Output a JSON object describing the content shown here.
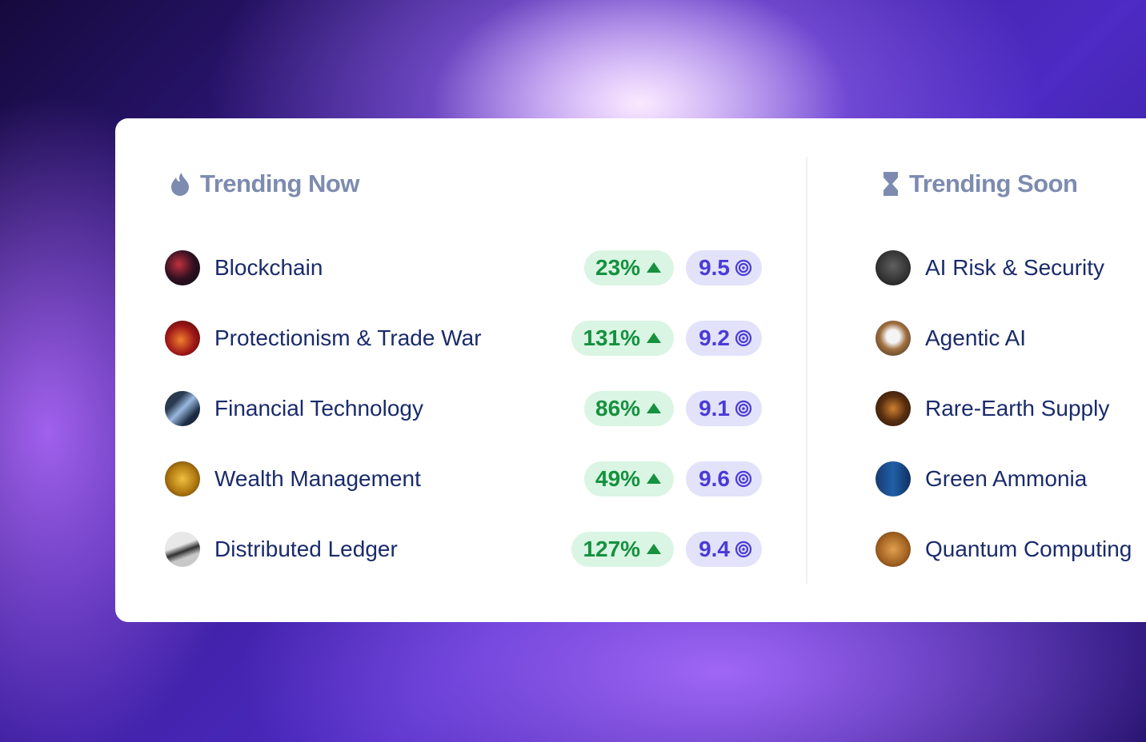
{
  "trending_now": {
    "title": "Trending Now",
    "items": [
      {
        "name": "Blockchain",
        "growth": "23%",
        "score": 9.5
      },
      {
        "name": "Protectionism & Trade War",
        "growth": "131%",
        "score": 9.2
      },
      {
        "name": "Financial Technology",
        "growth": "86%",
        "score": 9.1
      },
      {
        "name": "Wealth Management",
        "growth": "49%",
        "score": 9.6
      },
      {
        "name": "Distributed Ledger",
        "growth": "127%",
        "score": 9.4
      }
    ]
  },
  "trending_soon": {
    "title": "Trending Soon",
    "items": [
      {
        "name": "AI Risk & Security"
      },
      {
        "name": "Agentic AI"
      },
      {
        "name": "Rare-Earth Supply"
      },
      {
        "name": "Green Ammonia"
      },
      {
        "name": "Quantum Computing"
      }
    ]
  }
}
